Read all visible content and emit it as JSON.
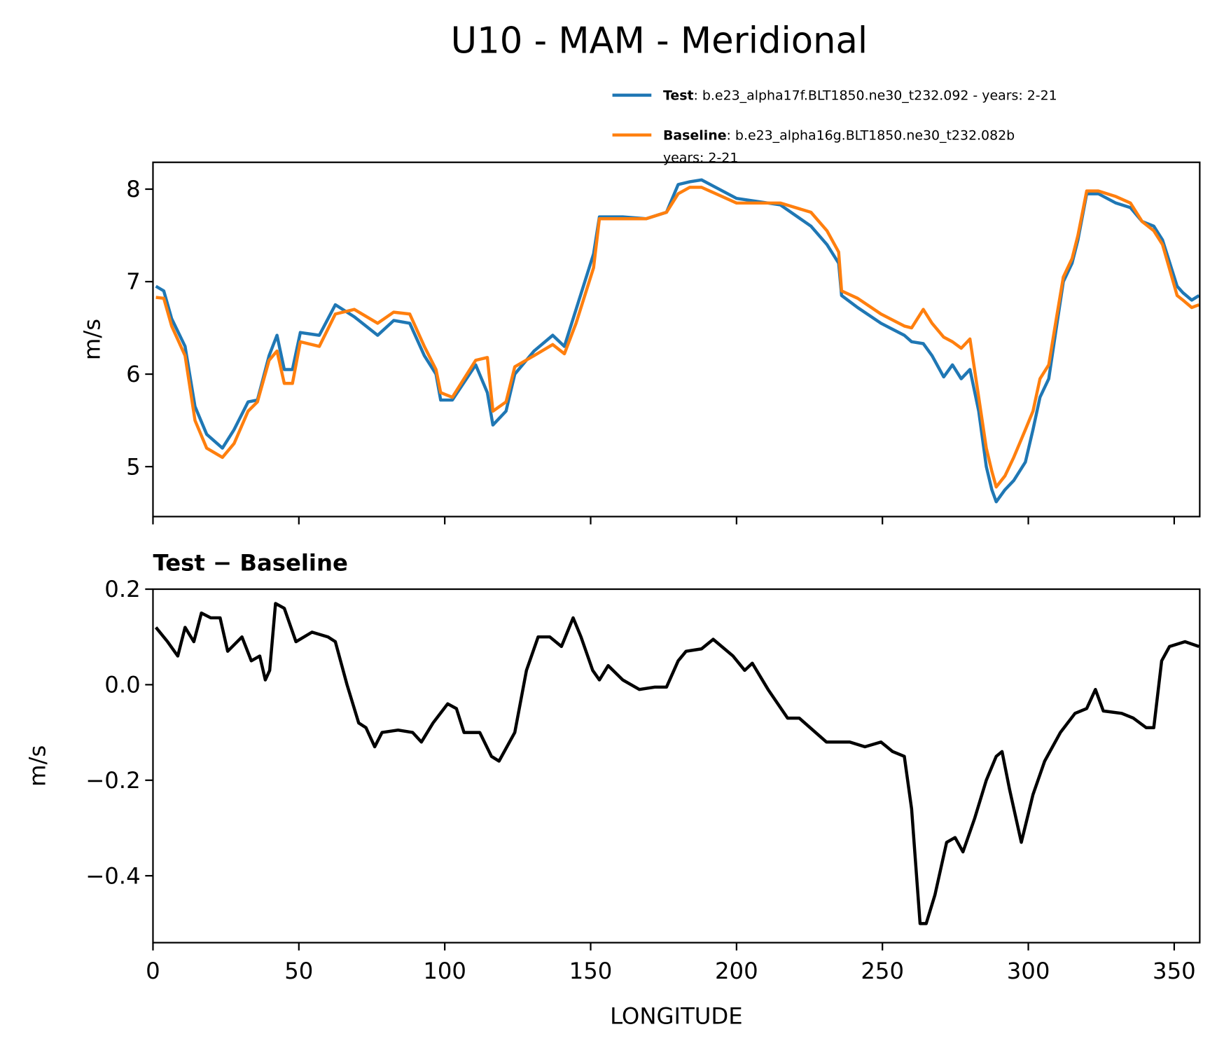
{
  "chart_data": [
    {
      "type": "line",
      "title": "U10 - MAM - Meridional",
      "y_label": "m/s",
      "x": [
        1,
        3.7,
        6.4,
        11,
        14.4,
        18.4,
        23.8,
        27.8,
        32.6,
        35.8,
        39.8,
        42.5,
        45,
        47.8,
        50.5,
        57,
        62.5,
        69,
        77,
        82.5,
        88,
        93,
        97,
        98.6,
        102.6,
        110.6,
        114.6,
        116.5,
        121,
        124,
        130.6,
        137,
        141,
        145,
        151,
        153,
        161,
        169,
        176,
        180,
        184,
        188,
        200,
        215,
        225.5,
        231,
        235,
        236,
        241.5,
        249.5,
        257.5,
        260,
        264,
        267,
        271,
        274,
        277,
        280,
        283,
        285.6,
        287.5,
        289,
        292,
        295,
        299,
        301.6,
        304,
        307,
        309.6,
        312,
        315,
        317,
        320,
        324,
        330,
        335,
        339,
        343,
        346,
        351,
        353,
        356,
        358.5
      ],
      "series": [
        {
          "name": "Test",
          "description": [
            ": b.e23_alpha17f.BLT1850.ne30_t232.092 - years: 2-21"
          ],
          "color": "#1f77b4",
          "values": [
            6.95,
            6.9,
            6.6,
            6.3,
            5.65,
            5.35,
            5.2,
            5.4,
            5.7,
            5.72,
            6.2,
            6.42,
            6.05,
            6.05,
            6.45,
            6.42,
            6.75,
            6.62,
            6.42,
            6.58,
            6.55,
            6.2,
            6.0,
            5.72,
            5.72,
            6.1,
            5.8,
            5.45,
            5.6,
            6.0,
            6.25,
            6.42,
            6.3,
            6.7,
            7.3,
            7.7,
            7.7,
            7.68,
            7.75,
            8.05,
            8.08,
            8.1,
            7.9,
            7.83,
            7.6,
            7.4,
            7.2,
            6.85,
            6.72,
            6.55,
            6.42,
            6.35,
            6.33,
            6.2,
            5.97,
            6.1,
            5.95,
            6.05,
            5.6,
            5.0,
            4.75,
            4.62,
            4.75,
            4.85,
            5.05,
            5.4,
            5.75,
            5.95,
            6.5,
            7.0,
            7.2,
            7.45,
            7.95,
            7.95,
            7.85,
            7.8,
            7.65,
            7.6,
            7.45,
            6.95,
            6.88,
            6.8,
            6.85
          ]
        },
        {
          "name": "Baseline",
          "description": [
            ": b.e23_alpha16g.BLT1850.ne30_t232.082b",
            "years: 2-21"
          ],
          "color": "#ff7f0e",
          "values": [
            6.83,
            6.82,
            6.52,
            6.2,
            5.5,
            5.2,
            5.1,
            5.25,
            5.6,
            5.7,
            6.15,
            6.25,
            5.9,
            5.9,
            6.35,
            6.3,
            6.65,
            6.7,
            6.55,
            6.67,
            6.65,
            6.3,
            6.05,
            5.8,
            5.75,
            6.15,
            6.18,
            5.6,
            5.7,
            6.08,
            6.2,
            6.32,
            6.22,
            6.55,
            7.15,
            7.68,
            7.68,
            7.68,
            7.75,
            7.95,
            8.02,
            8.02,
            7.85,
            7.85,
            7.75,
            7.55,
            7.32,
            6.9,
            6.82,
            6.65,
            6.52,
            6.5,
            6.7,
            6.55,
            6.4,
            6.35,
            6.28,
            6.38,
            5.75,
            5.2,
            4.95,
            4.78,
            4.9,
            5.1,
            5.4,
            5.6,
            5.95,
            6.1,
            6.6,
            7.05,
            7.25,
            7.5,
            7.98,
            7.98,
            7.92,
            7.85,
            7.65,
            7.55,
            7.4,
            6.85,
            6.8,
            6.72,
            6.75
          ]
        }
      ],
      "xlim": [
        0,
        358.75
      ],
      "xticks": [
        0,
        50,
        100,
        150,
        200,
        250,
        300,
        350
      ],
      "ylim": [
        4.46,
        8.29
      ],
      "yticks": [
        5,
        6,
        7,
        8
      ],
      "legend": "upper right"
    },
    {
      "type": "line",
      "title": "Test − Baseline",
      "x_label": "LONGITUDE",
      "y_label": "m/s",
      "x": [
        1,
        5,
        8.5,
        11,
        14,
        16.6,
        19.8,
        23,
        25.6,
        30.5,
        33.7,
        36.6,
        38.5,
        40,
        42,
        45,
        49,
        54.5,
        60,
        62.5,
        66.5,
        70.5,
        73,
        76,
        78.5,
        84,
        89,
        92,
        96,
        101,
        104,
        106.6,
        112,
        116,
        118.6,
        124,
        128,
        132,
        136,
        140,
        144,
        146.7,
        150.7,
        153,
        156,
        161,
        166.7,
        172,
        176,
        180,
        182.7,
        188,
        192,
        198.8,
        202.8,
        205.4,
        210.8,
        217.5,
        221.5,
        230.8,
        238.8,
        244,
        249.5,
        253.5,
        257.5,
        260,
        262.9,
        265,
        268,
        272,
        274.9,
        277.6,
        281.6,
        285.6,
        289,
        291,
        293.6,
        297.6,
        301.6,
        305.6,
        311,
        316,
        320,
        323,
        325.7,
        332,
        336,
        340.4,
        343,
        345.7,
        348.4,
        353.7,
        358.5
      ],
      "series": [
        {
          "color": "#000000",
          "values": [
            0.12,
            0.09,
            0.06,
            0.12,
            0.09,
            0.15,
            0.14,
            0.14,
            0.07,
            0.1,
            0.05,
            0.06,
            0.01,
            0.03,
            0.17,
            0.16,
            0.09,
            0.11,
            0.1,
            0.09,
            0.0,
            -0.08,
            -0.09,
            -0.13,
            -0.1,
            -0.095,
            -0.1,
            -0.12,
            -0.08,
            -0.04,
            -0.05,
            -0.1,
            -0.1,
            -0.15,
            -0.16,
            -0.1,
            0.03,
            0.1,
            0.1,
            0.08,
            0.14,
            0.1,
            0.03,
            0.01,
            0.04,
            0.01,
            -0.01,
            -0.005,
            -0.005,
            0.05,
            0.07,
            0.075,
            0.095,
            0.06,
            0.03,
            0.045,
            -0.01,
            -0.07,
            -0.07,
            -0.12,
            -0.12,
            -0.13,
            -0.12,
            -0.14,
            -0.15,
            -0.26,
            -0.5,
            -0.5,
            -0.44,
            -0.33,
            -0.32,
            -0.35,
            -0.28,
            -0.2,
            -0.15,
            -0.14,
            -0.22,
            -0.33,
            -0.23,
            -0.16,
            -0.1,
            -0.06,
            -0.05,
            -0.01,
            -0.055,
            -0.06,
            -0.07,
            -0.09,
            -0.09,
            0.05,
            0.08,
            0.09,
            0.08
          ]
        }
      ],
      "xlim": [
        0,
        358.75
      ],
      "xticks": [
        0,
        50,
        100,
        150,
        200,
        250,
        300,
        350
      ],
      "ylim": [
        -0.54,
        0.2
      ],
      "yticks": [
        {
          "value": -0.4,
          "label": "−0.4"
        },
        {
          "value": -0.2,
          "label": "−0.2"
        },
        {
          "value": 0,
          "label": "0.0"
        },
        0.2
      ]
    }
  ]
}
